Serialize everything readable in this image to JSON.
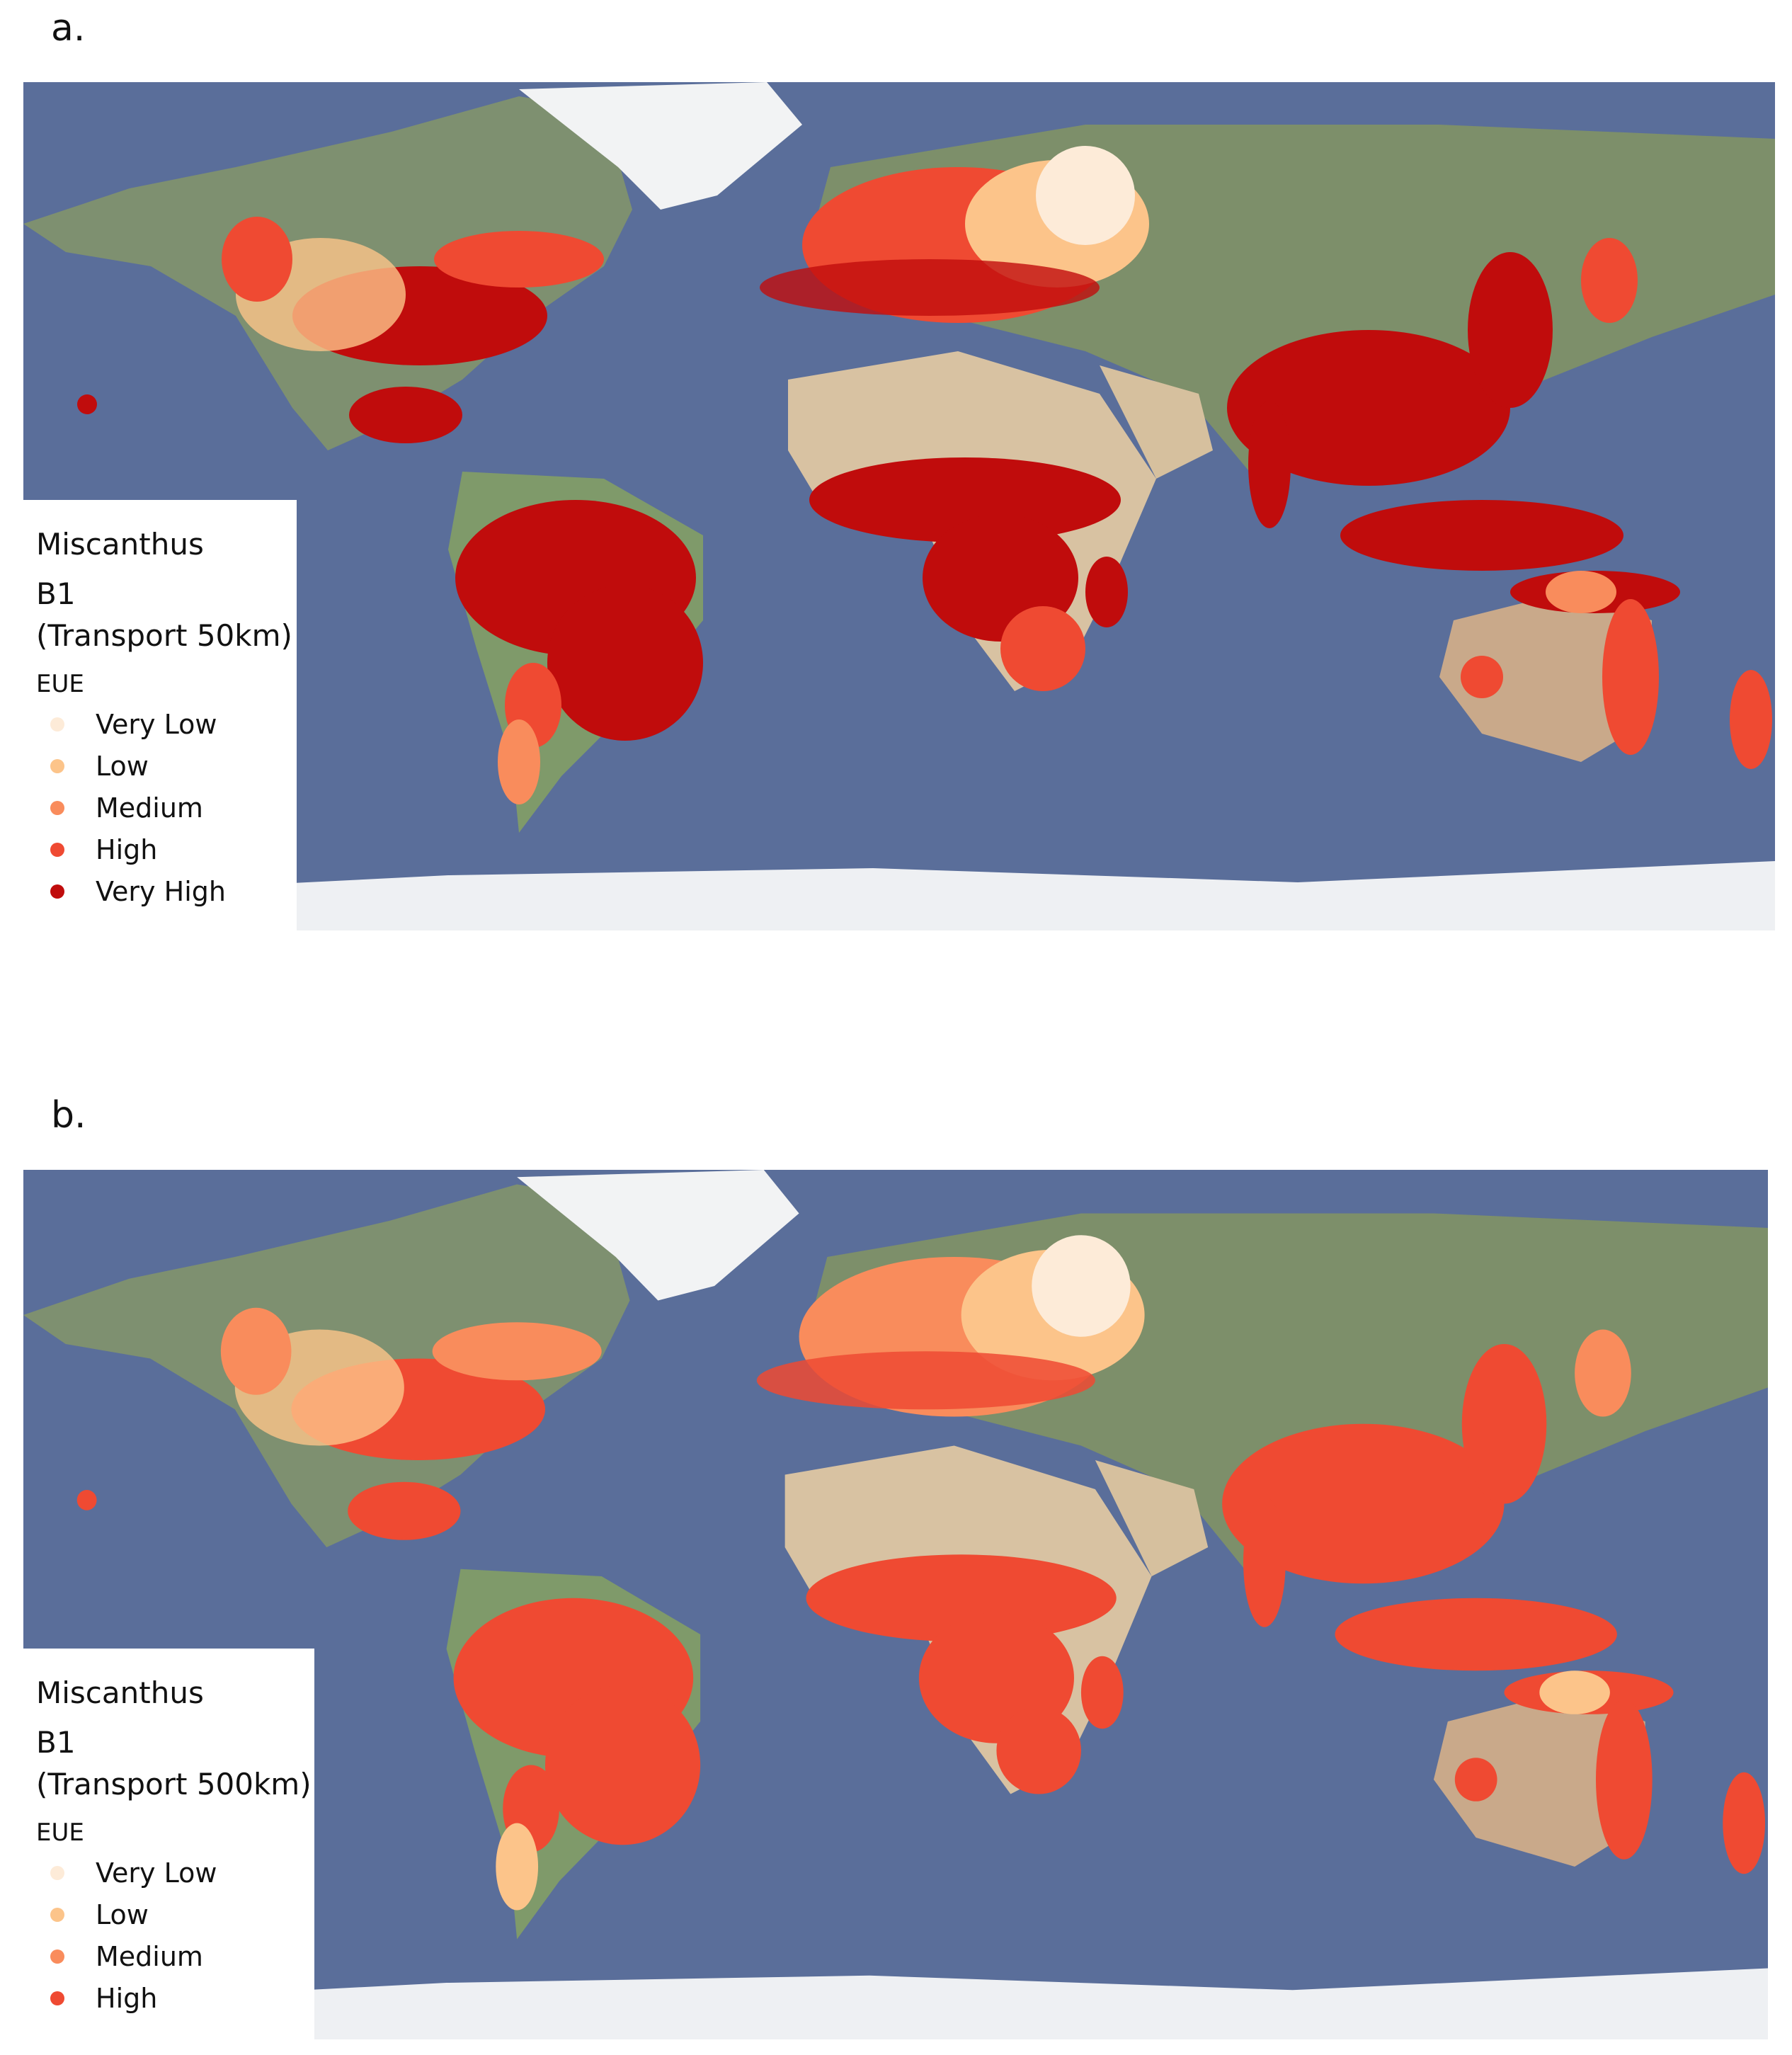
{
  "panels": [
    {
      "label": "a.",
      "legend": {
        "title": "Miscanthus",
        "scenario": "B1",
        "transport": "(Transport 50km)",
        "unit": "EUE",
        "items": [
          {
            "label": "Very Low",
            "color": "#fdebd8"
          },
          {
            "label": "Low",
            "color": "#fcc48a"
          },
          {
            "label": "Medium",
            "color": "#f98c5c"
          },
          {
            "label": "High",
            "color": "#ef4a32"
          },
          {
            "label": "Very High",
            "color": "#c00c0c"
          }
        ]
      }
    },
    {
      "label": "b.",
      "legend": {
        "title": "Miscanthus",
        "scenario": "B1",
        "transport": "(Transport 500km)",
        "unit": "EUE",
        "items": [
          {
            "label": "Very Low",
            "color": "#fdebd8"
          },
          {
            "label": "Low",
            "color": "#fcc48a"
          },
          {
            "label": "Medium",
            "color": "#f98c5c"
          },
          {
            "label": "High",
            "color": "#ef4a32"
          }
        ]
      }
    }
  ],
  "colors": {
    "ocean": "#5a6e9a",
    "land_boreal": "#7d8f6a",
    "land_desert": "#d8c2a2",
    "ice": "#eef0f3"
  }
}
